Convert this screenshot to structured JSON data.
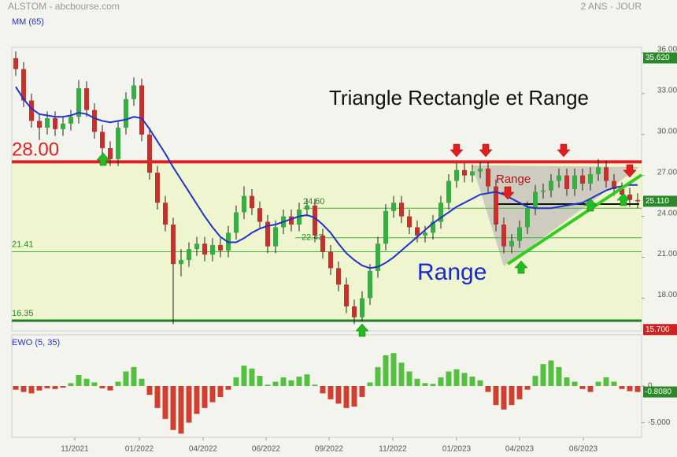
{
  "header": {
    "title": "ALSTOM - abcbourse.com",
    "period": "2 ANS - JOUR"
  },
  "chart_data": [
    {
      "type": "candlestick",
      "annotation": "Triangle Rectangle et Range",
      "annotations": [
        "Range",
        "Range"
      ],
      "up_color": "#33b040",
      "down_color": "#c8302c",
      "open": [
        35.6,
        34.8,
        32.5,
        31.0,
        30.5,
        31.2,
        30.4,
        30.8,
        31.3,
        33.4,
        31.8,
        30.2,
        29.0,
        28.2,
        30.5,
        32.6,
        33.6,
        30.0,
        27.2,
        25.0,
        23.4,
        20.5,
        20.8,
        21.6,
        22.0,
        21.2,
        21.9,
        21.5,
        22.8,
        24.3,
        25.5,
        24.6,
        23.6,
        21.8,
        23.2,
        24.0,
        23.4,
        24.5,
        24.8,
        22.6,
        21.4,
        20.2,
        19.0,
        17.4,
        16.6,
        18.0,
        20.0,
        22.0,
        24.4,
        25.0,
        24.0,
        23.2,
        22.6,
        22.8,
        23.6,
        25.0,
        26.6,
        27.4,
        27.0,
        27.3,
        27.5,
        26.2,
        23.4,
        21.8,
        22.2,
        23.2,
        24.6,
        25.8,
        25.9,
        26.6,
        27.0,
        26.0,
        27.0,
        26.4,
        27.1,
        27.6,
        26.6,
        26.0,
        25.6,
        25.2
      ],
      "high": [
        36.1,
        35.3,
        33.0,
        31.5,
        31.7,
        31.7,
        31.3,
        31.8,
        34.0,
        33.9,
        32.3,
        30.7,
        29.5,
        31.0,
        33.1,
        34.2,
        34.1,
        30.5,
        27.7,
        25.5,
        23.9,
        21.6,
        22.1,
        22.5,
        22.5,
        22.4,
        22.4,
        23.3,
        24.8,
        26.2,
        26.0,
        25.1,
        24.1,
        23.7,
        24.5,
        24.5,
        25.0,
        25.3,
        25.3,
        23.1,
        21.9,
        20.7,
        19.5,
        17.9,
        18.5,
        20.5,
        22.5,
        24.9,
        25.5,
        25.5,
        24.5,
        23.7,
        23.3,
        24.1,
        25.5,
        27.1,
        27.9,
        27.9,
        27.8,
        28.0,
        28.0,
        26.7,
        23.9,
        22.7,
        23.7,
        25.1,
        26.3,
        26.4,
        27.1,
        27.5,
        27.5,
        27.5,
        27.5,
        27.6,
        28.2,
        28.1,
        27.1,
        26.5,
        26.1,
        25.7
      ],
      "low": [
        34.3,
        32.0,
        30.5,
        29.6,
        30.0,
        29.9,
        29.9,
        30.3,
        30.8,
        31.3,
        29.7,
        28.5,
        27.7,
        27.7,
        30.0,
        32.1,
        29.5,
        26.7,
        24.5,
        22.9,
        16.1,
        19.6,
        20.3,
        21.1,
        20.7,
        20.7,
        21.0,
        21.0,
        22.3,
        23.8,
        24.1,
        23.1,
        21.3,
        21.3,
        22.7,
        22.9,
        22.9,
        24.0,
        22.1,
        20.9,
        19.7,
        18.5,
        16.9,
        16.1,
        16.3,
        17.5,
        19.5,
        21.5,
        23.9,
        23.5,
        22.7,
        22.1,
        22.1,
        22.3,
        23.1,
        24.5,
        26.1,
        26.5,
        26.5,
        26.8,
        25.7,
        22.9,
        21.3,
        21.3,
        21.7,
        22.7,
        24.1,
        25.3,
        25.4,
        26.1,
        25.5,
        25.5,
        25.9,
        25.9,
        26.6,
        26.1,
        25.5,
        25.1,
        24.7,
        24.6
      ],
      "close": [
        34.8,
        32.5,
        31.0,
        30.5,
        31.2,
        30.4,
        30.8,
        31.3,
        33.4,
        31.8,
        30.2,
        29.0,
        28.2,
        30.5,
        32.6,
        33.6,
        30.0,
        27.2,
        25.0,
        23.4,
        20.5,
        20.8,
        21.6,
        22.0,
        21.2,
        21.9,
        21.5,
        22.8,
        24.3,
        25.5,
        24.6,
        23.6,
        21.8,
        23.2,
        24.0,
        23.4,
        24.5,
        24.8,
        22.6,
        21.4,
        20.2,
        19.0,
        17.4,
        16.6,
        18.0,
        20.0,
        22.0,
        24.4,
        25.0,
        24.0,
        23.2,
        22.6,
        22.8,
        23.6,
        25.0,
        26.6,
        27.4,
        27.0,
        27.3,
        27.5,
        26.2,
        23.4,
        21.8,
        22.2,
        23.2,
        24.6,
        25.8,
        25.9,
        26.6,
        27.0,
        26.0,
        27.0,
        26.4,
        27.1,
        27.6,
        26.6,
        26.0,
        25.6,
        25.2,
        25.11
      ],
      "series": [
        {
          "name": "MM (65)",
          "color": "#2233cc",
          "values": [
            33.5,
            32.6,
            31.9,
            31.5,
            31.4,
            31.3,
            31.3,
            31.4,
            31.6,
            31.5,
            31.2,
            31.0,
            30.9,
            31.0,
            31.1,
            31.3,
            31.2,
            30.4,
            29.5,
            28.6,
            27.6,
            26.7,
            25.8,
            24.9,
            24.0,
            23.2,
            22.5,
            22.1,
            22.1,
            22.4,
            22.8,
            23.1,
            23.3,
            23.4,
            23.6,
            23.8,
            24.0,
            24.1,
            23.9,
            23.4,
            22.8,
            22.0,
            21.3,
            20.8,
            20.4,
            20.2,
            20.3,
            20.6,
            21.0,
            21.5,
            22.0,
            22.5,
            23.0,
            23.5,
            23.9,
            24.3,
            24.7,
            25.0,
            25.3,
            25.6,
            25.7,
            25.8,
            25.6,
            25.3,
            25.0,
            24.7,
            24.6,
            24.6,
            24.6,
            24.7,
            24.8,
            24.9,
            25.0,
            25.3,
            25.6,
            25.9,
            26.1,
            26.2,
            26.3,
            26.3
          ]
        }
      ],
      "levels": [
        {
          "value": 28,
          "label": "28.00",
          "color": "#e02020"
        },
        {
          "value": 16.35,
          "label": "16.35",
          "color": "#208020"
        },
        {
          "value": 21.41,
          "label": "21.41",
          "color": "#40b040"
        },
        {
          "value": 22.43,
          "label": "22.43",
          "color": "#40b040"
        },
        {
          "value": 24.6,
          "label": "24.60",
          "color": "#40b040"
        },
        {
          "value": 24.9,
          "color": "#111111"
        }
      ],
      "last_value": {
        "value": 25.11,
        "label": "25.110"
      },
      "high_value": {
        "value": 35.62,
        "label": "35.620"
      },
      "low_value": {
        "value": 15.7,
        "label": "15.700"
      },
      "xlim": [
        0,
        80
      ],
      "xticks": [
        {
          "value": 8,
          "label": "11/2021"
        },
        {
          "value": 16.2,
          "label": "01/2022"
        },
        {
          "value": 24.3,
          "label": "04/2022"
        },
        {
          "value": 32.3,
          "label": "06/2022"
        },
        {
          "value": 40.3,
          "label": "09/2022"
        },
        {
          "value": 48.4,
          "label": "11/2022"
        },
        {
          "value": 56.5,
          "label": "01/2023"
        },
        {
          "value": 64.5,
          "label": "04/2023"
        },
        {
          "value": 72.6,
          "label": "06/2023"
        }
      ],
      "ylim": [
        15.6,
        36.4
      ],
      "yticks": [
        {
          "value": 36,
          "label": "36.000"
        },
        {
          "value": 33,
          "label": "33.000"
        },
        {
          "value": 30,
          "label": "30.000"
        },
        {
          "value": 27,
          "label": "27.000"
        },
        {
          "value": 24,
          "label": "24.000"
        },
        {
          "value": 21,
          "label": "21.000"
        },
        {
          "value": 18,
          "label": "18.000"
        }
      ]
    },
    {
      "type": "bar",
      "title": "EWO (5, 35)",
      "pos_color": "#55c040",
      "neg_color": "#d04030",
      "values": [
        -0.5,
        -0.8,
        -1.0,
        -0.6,
        -0.3,
        -0.4,
        -0.2,
        0.4,
        1.5,
        1.0,
        0.5,
        -0.3,
        -0.6,
        0.6,
        2.0,
        2.6,
        1.0,
        -1.2,
        -3.0,
        -4.5,
        -6.0,
        -6.5,
        -5.0,
        -3.8,
        -3.0,
        -2.2,
        -1.5,
        -0.5,
        1.2,
        2.8,
        2.4,
        1.4,
        0.2,
        0.6,
        1.2,
        0.8,
        1.3,
        1.6,
        0.2,
        -1.0,
        -1.8,
        -2.4,
        -3.0,
        -2.8,
        -1.5,
        0.5,
        2.6,
        4.2,
        4.5,
        3.2,
        2.0,
        1.0,
        0.4,
        0.3,
        1.2,
        2.0,
        2.3,
        1.8,
        1.3,
        0.8,
        -0.8,
        -2.6,
        -3.2,
        -2.6,
        -1.8,
        -0.5,
        1.4,
        3.0,
        3.5,
        2.6,
        1.2,
        0.6,
        -0.4,
        -0.8,
        0.6,
        1.2,
        0.6,
        -0.4,
        -0.7,
        -0.808
      ],
      "last_value": {
        "value": -0.808,
        "label": "-0.8080"
      },
      "xlim": [
        0,
        80
      ],
      "ylim": [
        -7,
        7
      ],
      "yticks": [
        0,
        {
          "value": -5,
          "label": "-5.000"
        }
      ]
    }
  ]
}
